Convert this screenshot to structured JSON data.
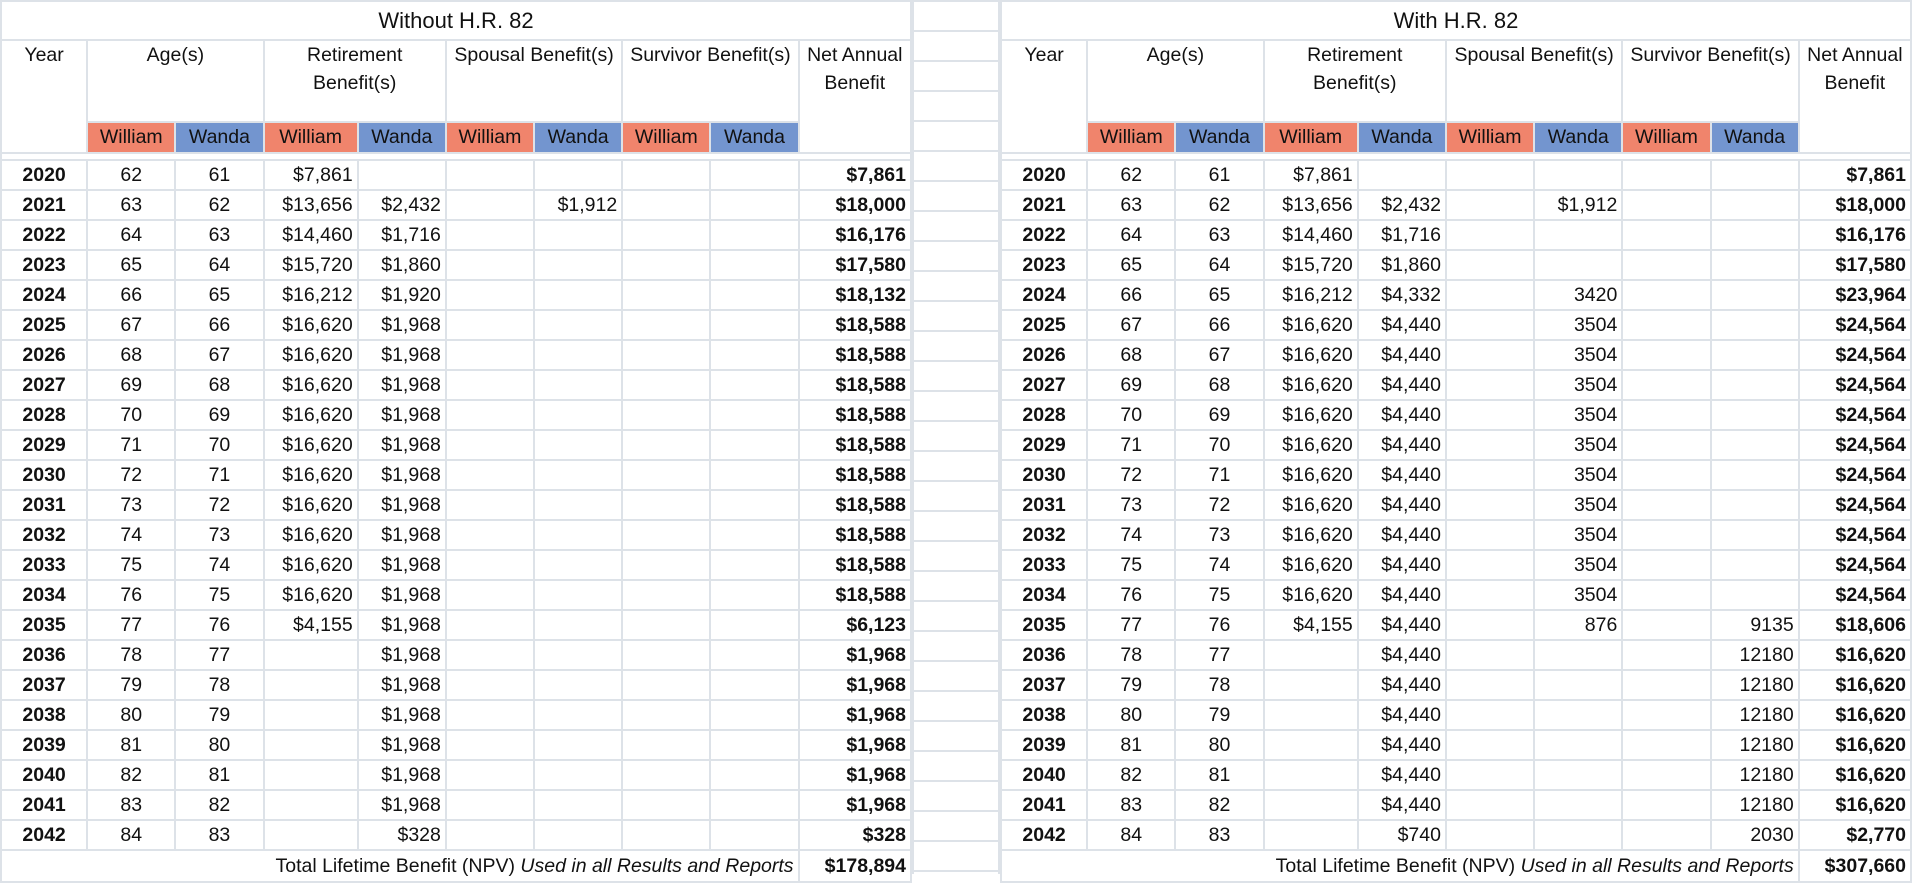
{
  "tables": [
    {
      "title": "Without H.R. 82",
      "headers": {
        "year": "Year",
        "ages": "Age(s)",
        "retirement": "Retirement Benefit(s)",
        "spousal": "Spousal Benefit(s)",
        "survivor": "Survivor Benefit(s)",
        "net": "Net Annual Benefit",
        "person1": "William",
        "person2": "Wanda"
      },
      "rows": [
        {
          "year": "2020",
          "age_william": "62",
          "age_wanda": "61",
          "ret_william": "$7,861",
          "ret_wanda": "",
          "sp_william": "",
          "sp_wanda": "",
          "sv_william": "",
          "sv_wanda": "",
          "net": "$7,861"
        },
        {
          "year": "2021",
          "age_william": "63",
          "age_wanda": "62",
          "ret_william": "$13,656",
          "ret_wanda": "$2,432",
          "sp_william": "",
          "sp_wanda": "$1,912",
          "sv_william": "",
          "sv_wanda": "",
          "net": "$18,000"
        },
        {
          "year": "2022",
          "age_william": "64",
          "age_wanda": "63",
          "ret_william": "$14,460",
          "ret_wanda": "$1,716",
          "sp_william": "",
          "sp_wanda": "",
          "sv_william": "",
          "sv_wanda": "",
          "net": "$16,176"
        },
        {
          "year": "2023",
          "age_william": "65",
          "age_wanda": "64",
          "ret_william": "$15,720",
          "ret_wanda": "$1,860",
          "sp_william": "",
          "sp_wanda": "",
          "sv_william": "",
          "sv_wanda": "",
          "net": "$17,580"
        },
        {
          "year": "2024",
          "age_william": "66",
          "age_wanda": "65",
          "ret_william": "$16,212",
          "ret_wanda": "$1,920",
          "sp_william": "",
          "sp_wanda": "",
          "sv_william": "",
          "sv_wanda": "",
          "net": "$18,132"
        },
        {
          "year": "2025",
          "age_william": "67",
          "age_wanda": "66",
          "ret_william": "$16,620",
          "ret_wanda": "$1,968",
          "sp_william": "",
          "sp_wanda": "",
          "sv_william": "",
          "sv_wanda": "",
          "net": "$18,588"
        },
        {
          "year": "2026",
          "age_william": "68",
          "age_wanda": "67",
          "ret_william": "$16,620",
          "ret_wanda": "$1,968",
          "sp_william": "",
          "sp_wanda": "",
          "sv_william": "",
          "sv_wanda": "",
          "net": "$18,588"
        },
        {
          "year": "2027",
          "age_william": "69",
          "age_wanda": "68",
          "ret_william": "$16,620",
          "ret_wanda": "$1,968",
          "sp_william": "",
          "sp_wanda": "",
          "sv_william": "",
          "sv_wanda": "",
          "net": "$18,588"
        },
        {
          "year": "2028",
          "age_william": "70",
          "age_wanda": "69",
          "ret_william": "$16,620",
          "ret_wanda": "$1,968",
          "sp_william": "",
          "sp_wanda": "",
          "sv_william": "",
          "sv_wanda": "",
          "net": "$18,588"
        },
        {
          "year": "2029",
          "age_william": "71",
          "age_wanda": "70",
          "ret_william": "$16,620",
          "ret_wanda": "$1,968",
          "sp_william": "",
          "sp_wanda": "",
          "sv_william": "",
          "sv_wanda": "",
          "net": "$18,588"
        },
        {
          "year": "2030",
          "age_william": "72",
          "age_wanda": "71",
          "ret_william": "$16,620",
          "ret_wanda": "$1,968",
          "sp_william": "",
          "sp_wanda": "",
          "sv_william": "",
          "sv_wanda": "",
          "net": "$18,588"
        },
        {
          "year": "2031",
          "age_william": "73",
          "age_wanda": "72",
          "ret_william": "$16,620",
          "ret_wanda": "$1,968",
          "sp_william": "",
          "sp_wanda": "",
          "sv_william": "",
          "sv_wanda": "",
          "net": "$18,588"
        },
        {
          "year": "2032",
          "age_william": "74",
          "age_wanda": "73",
          "ret_william": "$16,620",
          "ret_wanda": "$1,968",
          "sp_william": "",
          "sp_wanda": "",
          "sv_william": "",
          "sv_wanda": "",
          "net": "$18,588"
        },
        {
          "year": "2033",
          "age_william": "75",
          "age_wanda": "74",
          "ret_william": "$16,620",
          "ret_wanda": "$1,968",
          "sp_william": "",
          "sp_wanda": "",
          "sv_william": "",
          "sv_wanda": "",
          "net": "$18,588"
        },
        {
          "year": "2034",
          "age_william": "76",
          "age_wanda": "75",
          "ret_william": "$16,620",
          "ret_wanda": "$1,968",
          "sp_william": "",
          "sp_wanda": "",
          "sv_william": "",
          "sv_wanda": "",
          "net": "$18,588"
        },
        {
          "year": "2035",
          "age_william": "77",
          "age_wanda": "76",
          "ret_william": "$4,155",
          "ret_wanda": "$1,968",
          "sp_william": "",
          "sp_wanda": "",
          "sv_william": "",
          "sv_wanda": "",
          "net": "$6,123"
        },
        {
          "year": "2036",
          "age_william": "78",
          "age_wanda": "77",
          "ret_william": "",
          "ret_wanda": "$1,968",
          "sp_william": "",
          "sp_wanda": "",
          "sv_william": "",
          "sv_wanda": "",
          "net": "$1,968"
        },
        {
          "year": "2037",
          "age_william": "79",
          "age_wanda": "78",
          "ret_william": "",
          "ret_wanda": "$1,968",
          "sp_william": "",
          "sp_wanda": "",
          "sv_william": "",
          "sv_wanda": "",
          "net": "$1,968"
        },
        {
          "year": "2038",
          "age_william": "80",
          "age_wanda": "79",
          "ret_william": "",
          "ret_wanda": "$1,968",
          "sp_william": "",
          "sp_wanda": "",
          "sv_william": "",
          "sv_wanda": "",
          "net": "$1,968"
        },
        {
          "year": "2039",
          "age_william": "81",
          "age_wanda": "80",
          "ret_william": "",
          "ret_wanda": "$1,968",
          "sp_william": "",
          "sp_wanda": "",
          "sv_william": "",
          "sv_wanda": "",
          "net": "$1,968"
        },
        {
          "year": "2040",
          "age_william": "82",
          "age_wanda": "81",
          "ret_william": "",
          "ret_wanda": "$1,968",
          "sp_william": "",
          "sp_wanda": "",
          "sv_william": "",
          "sv_wanda": "",
          "net": "$1,968"
        },
        {
          "year": "2041",
          "age_william": "83",
          "age_wanda": "82",
          "ret_william": "",
          "ret_wanda": "$1,968",
          "sp_william": "",
          "sp_wanda": "",
          "sv_william": "",
          "sv_wanda": "",
          "net": "$1,968"
        },
        {
          "year": "2042",
          "age_william": "84",
          "age_wanda": "83",
          "ret_william": "",
          "ret_wanda": "$328",
          "sp_william": "",
          "sp_wanda": "",
          "sv_william": "",
          "sv_wanda": "",
          "net": "$328"
        }
      ],
      "total": {
        "label_plain": "Total Lifetime Benefit (NPV) ",
        "label_italic": "Used in all Results and Reports",
        "value": "$178,894"
      }
    },
    {
      "title": "With H.R. 82",
      "headers": {
        "year": "Year",
        "ages": "Age(s)",
        "retirement": "Retirement Benefit(s)",
        "spousal": "Spousal Benefit(s)",
        "survivor": "Survivor Benefit(s)",
        "net": "Net Annual Benefit",
        "person1": "William",
        "person2": "Wanda"
      },
      "rows": [
        {
          "year": "2020",
          "age_william": "62",
          "age_wanda": "61",
          "ret_william": "$7,861",
          "ret_wanda": "",
          "sp_william": "",
          "sp_wanda": "",
          "sv_william": "",
          "sv_wanda": "",
          "net": "$7,861"
        },
        {
          "year": "2021",
          "age_william": "63",
          "age_wanda": "62",
          "ret_william": "$13,656",
          "ret_wanda": "$2,432",
          "sp_william": "",
          "sp_wanda": "$1,912",
          "sv_william": "",
          "sv_wanda": "",
          "net": "$18,000"
        },
        {
          "year": "2022",
          "age_william": "64",
          "age_wanda": "63",
          "ret_william": "$14,460",
          "ret_wanda": "$1,716",
          "sp_william": "",
          "sp_wanda": "",
          "sv_william": "",
          "sv_wanda": "",
          "net": "$16,176"
        },
        {
          "year": "2023",
          "age_william": "65",
          "age_wanda": "64",
          "ret_william": "$15,720",
          "ret_wanda": "$1,860",
          "sp_william": "",
          "sp_wanda": "",
          "sv_william": "",
          "sv_wanda": "",
          "net": "$17,580"
        },
        {
          "year": "2024",
          "age_william": "66",
          "age_wanda": "65",
          "ret_william": "$16,212",
          "ret_wanda": "$4,332",
          "sp_william": "",
          "sp_wanda": "3420",
          "sv_william": "",
          "sv_wanda": "",
          "net": "$23,964"
        },
        {
          "year": "2025",
          "age_william": "67",
          "age_wanda": "66",
          "ret_william": "$16,620",
          "ret_wanda": "$4,440",
          "sp_william": "",
          "sp_wanda": "3504",
          "sv_william": "",
          "sv_wanda": "",
          "net": "$24,564"
        },
        {
          "year": "2026",
          "age_william": "68",
          "age_wanda": "67",
          "ret_william": "$16,620",
          "ret_wanda": "$4,440",
          "sp_william": "",
          "sp_wanda": "3504",
          "sv_william": "",
          "sv_wanda": "",
          "net": "$24,564"
        },
        {
          "year": "2027",
          "age_william": "69",
          "age_wanda": "68",
          "ret_william": "$16,620",
          "ret_wanda": "$4,440",
          "sp_william": "",
          "sp_wanda": "3504",
          "sv_william": "",
          "sv_wanda": "",
          "net": "$24,564"
        },
        {
          "year": "2028",
          "age_william": "70",
          "age_wanda": "69",
          "ret_william": "$16,620",
          "ret_wanda": "$4,440",
          "sp_william": "",
          "sp_wanda": "3504",
          "sv_william": "",
          "sv_wanda": "",
          "net": "$24,564"
        },
        {
          "year": "2029",
          "age_william": "71",
          "age_wanda": "70",
          "ret_william": "$16,620",
          "ret_wanda": "$4,440",
          "sp_william": "",
          "sp_wanda": "3504",
          "sv_william": "",
          "sv_wanda": "",
          "net": "$24,564"
        },
        {
          "year": "2030",
          "age_william": "72",
          "age_wanda": "71",
          "ret_william": "$16,620",
          "ret_wanda": "$4,440",
          "sp_william": "",
          "sp_wanda": "3504",
          "sv_william": "",
          "sv_wanda": "",
          "net": "$24,564"
        },
        {
          "year": "2031",
          "age_william": "73",
          "age_wanda": "72",
          "ret_william": "$16,620",
          "ret_wanda": "$4,440",
          "sp_william": "",
          "sp_wanda": "3504",
          "sv_william": "",
          "sv_wanda": "",
          "net": "$24,564"
        },
        {
          "year": "2032",
          "age_william": "74",
          "age_wanda": "73",
          "ret_william": "$16,620",
          "ret_wanda": "$4,440",
          "sp_william": "",
          "sp_wanda": "3504",
          "sv_william": "",
          "sv_wanda": "",
          "net": "$24,564"
        },
        {
          "year": "2033",
          "age_william": "75",
          "age_wanda": "74",
          "ret_william": "$16,620",
          "ret_wanda": "$4,440",
          "sp_william": "",
          "sp_wanda": "3504",
          "sv_william": "",
          "sv_wanda": "",
          "net": "$24,564"
        },
        {
          "year": "2034",
          "age_william": "76",
          "age_wanda": "75",
          "ret_william": "$16,620",
          "ret_wanda": "$4,440",
          "sp_william": "",
          "sp_wanda": "3504",
          "sv_william": "",
          "sv_wanda": "",
          "net": "$24,564"
        },
        {
          "year": "2035",
          "age_william": "77",
          "age_wanda": "76",
          "ret_william": "$4,155",
          "ret_wanda": "$4,440",
          "sp_william": "",
          "sp_wanda": "876",
          "sv_william": "",
          "sv_wanda": "9135",
          "net": "$18,606"
        },
        {
          "year": "2036",
          "age_william": "78",
          "age_wanda": "77",
          "ret_william": "",
          "ret_wanda": "$4,440",
          "sp_william": "",
          "sp_wanda": "",
          "sv_william": "",
          "sv_wanda": "12180",
          "net": "$16,620"
        },
        {
          "year": "2037",
          "age_william": "79",
          "age_wanda": "78",
          "ret_william": "",
          "ret_wanda": "$4,440",
          "sp_william": "",
          "sp_wanda": "",
          "sv_william": "",
          "sv_wanda": "12180",
          "net": "$16,620"
        },
        {
          "year": "2038",
          "age_william": "80",
          "age_wanda": "79",
          "ret_william": "",
          "ret_wanda": "$4,440",
          "sp_william": "",
          "sp_wanda": "",
          "sv_william": "",
          "sv_wanda": "12180",
          "net": "$16,620"
        },
        {
          "year": "2039",
          "age_william": "81",
          "age_wanda": "80",
          "ret_william": "",
          "ret_wanda": "$4,440",
          "sp_william": "",
          "sp_wanda": "",
          "sv_william": "",
          "sv_wanda": "12180",
          "net": "$16,620"
        },
        {
          "year": "2040",
          "age_william": "82",
          "age_wanda": "81",
          "ret_william": "",
          "ret_wanda": "$4,440",
          "sp_william": "",
          "sp_wanda": "",
          "sv_william": "",
          "sv_wanda": "12180",
          "net": "$16,620"
        },
        {
          "year": "2041",
          "age_william": "83",
          "age_wanda": "82",
          "ret_william": "",
          "ret_wanda": "$4,440",
          "sp_william": "",
          "sp_wanda": "",
          "sv_william": "",
          "sv_wanda": "12180",
          "net": "$16,620"
        },
        {
          "year": "2042",
          "age_william": "84",
          "age_wanda": "83",
          "ret_william": "",
          "ret_wanda": "$740",
          "sp_william": "",
          "sp_wanda": "",
          "sv_william": "",
          "sv_wanda": "2030",
          "net": "$2,770"
        }
      ],
      "total": {
        "label_plain": "Total Lifetime Benefit (NPV) ",
        "label_italic": "Used in all Results and Reports",
        "value": "$307,660"
      }
    }
  ],
  "colors": {
    "william": "#f0846c",
    "wanda": "#7395cf",
    "gridline": "#dde2e8"
  }
}
